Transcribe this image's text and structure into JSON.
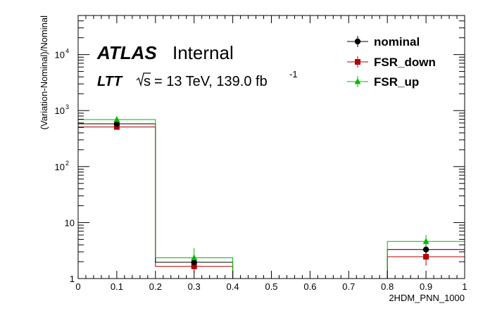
{
  "chart_data": {
    "type": "histogram",
    "ylabel": "(Variation-Nominal)/Nominal",
    "xlabel": "2HDM_PNN_1000",
    "xlim": [
      0,
      1
    ],
    "ylim": [
      1,
      50000
    ],
    "yscale": "log",
    "grid": false,
    "legend_position": "top-right",
    "x_ticks": [
      "0",
      "0.1",
      "0.2",
      "0.3",
      "0.4",
      "0.5",
      "0.6",
      "0.7",
      "0.8",
      "0.9",
      "1"
    ],
    "y_ticks": [
      {
        "value": 1,
        "label": "1"
      },
      {
        "value": 10,
        "label": "10"
      },
      {
        "value": 100,
        "label": "10",
        "exp": "2"
      },
      {
        "value": 1000,
        "label": "10",
        "exp": "3"
      },
      {
        "value": 10000,
        "label": "10",
        "exp": "4"
      }
    ],
    "bin_edges": [
      0,
      0.2,
      0.4,
      0.6,
      0.8,
      1.0
    ],
    "series": [
      {
        "name": "nominal",
        "color": "#000000",
        "marker": "circle",
        "values": [
          580,
          1.95,
          1,
          1,
          3.3
        ],
        "points": [
          {
            "x": 0.1,
            "y": 580,
            "lo": 530,
            "hi": 640
          },
          {
            "x": 0.3,
            "y": 1.95,
            "lo": 1.6,
            "hi": 2.4
          },
          {
            "x": 0.9,
            "y": 3.3,
            "lo": 2.5,
            "hi": 4.2
          }
        ]
      },
      {
        "name": "FSR_down",
        "color": "#b30000",
        "marker": "square",
        "values": [
          510,
          1.65,
          1,
          1,
          2.45
        ],
        "points": [
          {
            "x": 0.1,
            "y": 510,
            "lo": 460,
            "hi": 565
          },
          {
            "x": 0.3,
            "y": 1.65,
            "lo": 1.25,
            "hi": 2.1
          },
          {
            "x": 0.9,
            "y": 2.45,
            "lo": 1.7,
            "hi": 3.3
          }
        ]
      },
      {
        "name": "FSR_up",
        "color": "#00bb00",
        "marker": "triangle",
        "values": [
          690,
          2.35,
          1,
          1,
          4.6
        ],
        "points": [
          {
            "x": 0.1,
            "y": 690,
            "lo": 630,
            "hi": 760
          },
          {
            "x": 0.3,
            "y": 2.35,
            "lo": 1.6,
            "hi": 3.5
          },
          {
            "x": 0.9,
            "y": 4.6,
            "lo": 3.5,
            "hi": 6.0
          }
        ]
      }
    ]
  },
  "labels": {
    "atlas": "ATLAS",
    "internal": "Internal",
    "channel": "LTT",
    "sqrt_s": "s",
    "energy": "= 13 TeV, 139.0 fb",
    "lumi_exp": "-1"
  }
}
